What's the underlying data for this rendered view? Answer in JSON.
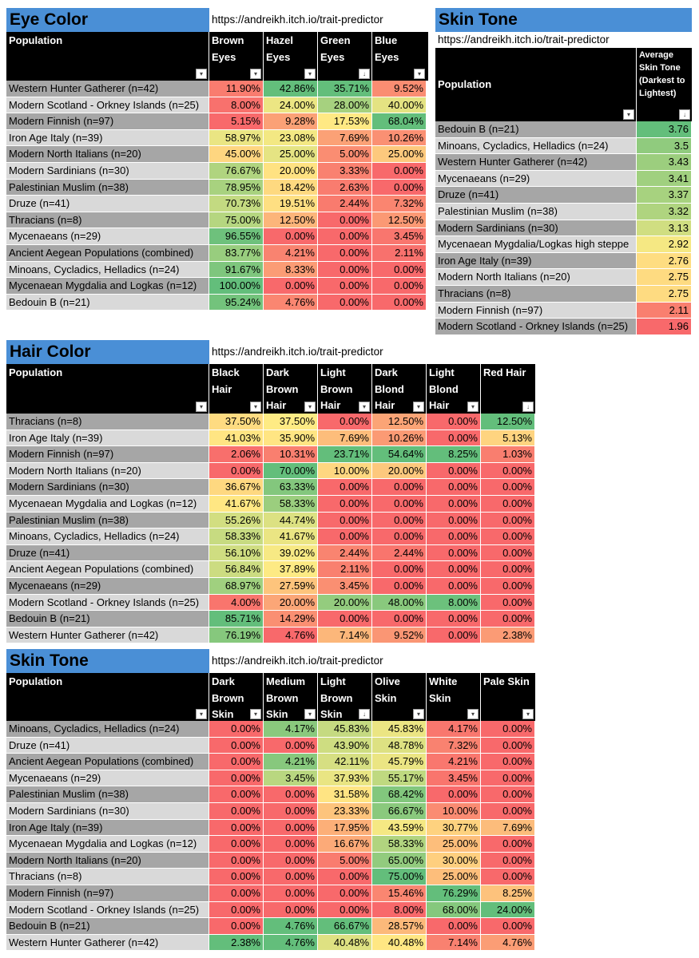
{
  "url": "https://andreikh.itch.io/trait-predictor",
  "colors": {
    "title_bg": "#4a8fd6",
    "scale_low": "#f8696b",
    "scale_mid": "#ffeb84",
    "scale_high": "#63be7b"
  },
  "eye_color": {
    "title": "Eye Color",
    "headers": [
      "Population",
      "Brown Eyes",
      "Hazel Eyes",
      "Green Eyes",
      "Blue Eyes"
    ],
    "rows": [
      {
        "pop": "Western Hunter Gatherer (n=42)",
        "vals": [
          "11.90%",
          "42.86%",
          "35.71%",
          "9.52%"
        ]
      },
      {
        "pop": "Modern Scotland - Orkney Islands (n=25)",
        "vals": [
          "8.00%",
          "24.00%",
          "28.00%",
          "40.00%"
        ]
      },
      {
        "pop": "Modern Finnish (n=97)",
        "vals": [
          "5.15%",
          "9.28%",
          "17.53%",
          "68.04%"
        ]
      },
      {
        "pop": "Iron Age Italy (n=39)",
        "vals": [
          "58.97%",
          "23.08%",
          "7.69%",
          "10.26%"
        ]
      },
      {
        "pop": "Modern North Italians (n=20)",
        "vals": [
          "45.00%",
          "25.00%",
          "5.00%",
          "25.00%"
        ]
      },
      {
        "pop": "Modern Sardinians (n=30)",
        "vals": [
          "76.67%",
          "20.00%",
          "3.33%",
          "0.00%"
        ]
      },
      {
        "pop": "Palestinian Muslim (n=38)",
        "vals": [
          "78.95%",
          "18.42%",
          "2.63%",
          "0.00%"
        ]
      },
      {
        "pop": "Druze (n=41)",
        "vals": [
          "70.73%",
          "19.51%",
          "2.44%",
          "7.32%"
        ]
      },
      {
        "pop": "Thracians (n=8)",
        "vals": [
          "75.00%",
          "12.50%",
          "0.00%",
          "12.50%"
        ]
      },
      {
        "pop": "Mycenaeans (n=29)",
        "vals": [
          "96.55%",
          "0.00%",
          "0.00%",
          "3.45%"
        ]
      },
      {
        "pop": "Ancient Aegean Populations (combined)",
        "vals": [
          "83.77%",
          "4.21%",
          "0.00%",
          "2.11%"
        ]
      },
      {
        "pop": "Minoans, Cycladics, Helladics (n=24)",
        "vals": [
          "91.67%",
          "8.33%",
          "0.00%",
          "0.00%"
        ]
      },
      {
        "pop": "Mycenaean Mygdalia and Logkas (n=12)",
        "vals": [
          "100.00%",
          "0.00%",
          "0.00%",
          "0.00%"
        ]
      },
      {
        "pop": "Bedouin B (n=21)",
        "vals": [
          "95.24%",
          "4.76%",
          "0.00%",
          "0.00%"
        ]
      }
    ]
  },
  "skin_avg": {
    "title": "Skin Tone",
    "headers": [
      "Population",
      "Average Skin Tone (Darkest to Lightest)"
    ],
    "rows": [
      {
        "pop": "Bedouin B (n=21)",
        "vals": [
          "3.76"
        ]
      },
      {
        "pop": "Minoans, Cycladics, Helladics (n=24)",
        "vals": [
          "3.5"
        ]
      },
      {
        "pop": "Western Hunter Gatherer (n=42)",
        "vals": [
          "3.43"
        ]
      },
      {
        "pop": "Mycenaeans (n=29)",
        "vals": [
          "3.41"
        ]
      },
      {
        "pop": "Druze (n=41)",
        "vals": [
          "3.37"
        ]
      },
      {
        "pop": "Palestinian Muslim (n=38)",
        "vals": [
          "3.32"
        ]
      },
      {
        "pop": "Modern Sardinians (n=30)",
        "vals": [
          "3.13"
        ]
      },
      {
        "pop": "Mycenaean Mygdalia/Logkas high steppe",
        "vals": [
          "2.92"
        ]
      },
      {
        "pop": "Iron Age Italy (n=39)",
        "vals": [
          "2.76"
        ]
      },
      {
        "pop": "Modern North Italians (n=20)",
        "vals": [
          "2.75"
        ]
      },
      {
        "pop": "Thracians (n=8)",
        "vals": [
          "2.75"
        ]
      },
      {
        "pop": "Modern Finnish (n=97)",
        "vals": [
          "2.11"
        ]
      },
      {
        "pop": "Modern Scotland - Orkney Islands (n=25)",
        "vals": [
          "1.96"
        ]
      }
    ]
  },
  "hair_color": {
    "title": "Hair Color",
    "headers": [
      "Population",
      "Black Hair",
      "Dark Brown Hair",
      "Light Brown Hair",
      "Dark Blond Hair",
      "Light Blond Hair",
      "Red Hair"
    ],
    "rows": [
      {
        "pop": "Thracians (n=8)",
        "vals": [
          "37.50%",
          "37.50%",
          "0.00%",
          "12.50%",
          "0.00%",
          "12.50%"
        ]
      },
      {
        "pop": "Iron Age Italy (n=39)",
        "vals": [
          "41.03%",
          "35.90%",
          "7.69%",
          "10.26%",
          "0.00%",
          "5.13%"
        ]
      },
      {
        "pop": "Modern Finnish (n=97)",
        "vals": [
          "2.06%",
          "10.31%",
          "23.71%",
          "54.64%",
          "8.25%",
          "1.03%"
        ]
      },
      {
        "pop": "Modern North Italians (n=20)",
        "vals": [
          "0.00%",
          "70.00%",
          "10.00%",
          "20.00%",
          "0.00%",
          "0.00%"
        ]
      },
      {
        "pop": "Modern Sardinians (n=30)",
        "vals": [
          "36.67%",
          "63.33%",
          "0.00%",
          "0.00%",
          "0.00%",
          "0.00%"
        ]
      },
      {
        "pop": "Mycenaean Mygdalia and Logkas (n=12)",
        "vals": [
          "41.67%",
          "58.33%",
          "0.00%",
          "0.00%",
          "0.00%",
          "0.00%"
        ]
      },
      {
        "pop": "Palestinian Muslim (n=38)",
        "vals": [
          "55.26%",
          "44.74%",
          "0.00%",
          "0.00%",
          "0.00%",
          "0.00%"
        ]
      },
      {
        "pop": "Minoans, Cycladics, Helladics (n=24)",
        "vals": [
          "58.33%",
          "41.67%",
          "0.00%",
          "0.00%",
          "0.00%",
          "0.00%"
        ]
      },
      {
        "pop": "Druze (n=41)",
        "vals": [
          "56.10%",
          "39.02%",
          "2.44%",
          "2.44%",
          "0.00%",
          "0.00%"
        ]
      },
      {
        "pop": "Ancient Aegean Populations (combined)",
        "vals": [
          "56.84%",
          "37.89%",
          "2.11%",
          "0.00%",
          "0.00%",
          "0.00%"
        ]
      },
      {
        "pop": "Mycenaeans (n=29)",
        "vals": [
          "68.97%",
          "27.59%",
          "3.45%",
          "0.00%",
          "0.00%",
          "0.00%"
        ]
      },
      {
        "pop": "Modern Scotland - Orkney Islands (n=25)",
        "vals": [
          "4.00%",
          "20.00%",
          "20.00%",
          "48.00%",
          "8.00%",
          "0.00%"
        ]
      },
      {
        "pop": "Bedouin B (n=21)",
        "vals": [
          "85.71%",
          "14.29%",
          "0.00%",
          "0.00%",
          "0.00%",
          "0.00%"
        ]
      },
      {
        "pop": "Western Hunter Gatherer (n=42)",
        "vals": [
          "76.19%",
          "4.76%",
          "7.14%",
          "9.52%",
          "0.00%",
          "2.38%"
        ]
      }
    ]
  },
  "skin_tone": {
    "title": "Skin Tone",
    "headers": [
      "Population",
      "Dark Brown Skin",
      "Medium Brown Skin",
      "Light Brown Skin",
      "Olive Skin",
      "White Skin",
      "Pale Skin"
    ],
    "rows": [
      {
        "pop": "Minoans, Cycladics, Helladics (n=24)",
        "vals": [
          "0.00%",
          "4.17%",
          "45.83%",
          "45.83%",
          "4.17%",
          "0.00%"
        ]
      },
      {
        "pop": "Druze (n=41)",
        "vals": [
          "0.00%",
          "0.00%",
          "43.90%",
          "48.78%",
          "7.32%",
          "0.00%"
        ]
      },
      {
        "pop": "Ancient Aegean Populations (combined)",
        "vals": [
          "0.00%",
          "4.21%",
          "42.11%",
          "45.79%",
          "4.21%",
          "0.00%"
        ]
      },
      {
        "pop": "Mycenaeans (n=29)",
        "vals": [
          "0.00%",
          "3.45%",
          "37.93%",
          "55.17%",
          "3.45%",
          "0.00%"
        ]
      },
      {
        "pop": "Palestinian Muslim (n=38)",
        "vals": [
          "0.00%",
          "0.00%",
          "31.58%",
          "68.42%",
          "0.00%",
          "0.00%"
        ]
      },
      {
        "pop": "Modern Sardinians (n=30)",
        "vals": [
          "0.00%",
          "0.00%",
          "23.33%",
          "66.67%",
          "10.00%",
          "0.00%"
        ]
      },
      {
        "pop": "Iron Age Italy (n=39)",
        "vals": [
          "0.00%",
          "0.00%",
          "17.95%",
          "43.59%",
          "30.77%",
          "7.69%"
        ]
      },
      {
        "pop": "Mycenaean Mygdalia and Logkas (n=12)",
        "vals": [
          "0.00%",
          "0.00%",
          "16.67%",
          "58.33%",
          "25.00%",
          "0.00%"
        ]
      },
      {
        "pop": "Modern North Italians (n=20)",
        "vals": [
          "0.00%",
          "0.00%",
          "5.00%",
          "65.00%",
          "30.00%",
          "0.00%"
        ]
      },
      {
        "pop": "Thracians (n=8)",
        "vals": [
          "0.00%",
          "0.00%",
          "0.00%",
          "75.00%",
          "25.00%",
          "0.00%"
        ]
      },
      {
        "pop": "Modern Finnish (n=97)",
        "vals": [
          "0.00%",
          "0.00%",
          "0.00%",
          "15.46%",
          "76.29%",
          "8.25%"
        ]
      },
      {
        "pop": "Modern Scotland - Orkney Islands (n=25)",
        "vals": [
          "0.00%",
          "0.00%",
          "0.00%",
          "8.00%",
          "68.00%",
          "24.00%"
        ]
      },
      {
        "pop": "Bedouin B (n=21)",
        "vals": [
          "0.00%",
          "4.76%",
          "66.67%",
          "28.57%",
          "0.00%",
          "0.00%"
        ]
      },
      {
        "pop": "Western Hunter Gatherer (n=42)",
        "vals": [
          "2.38%",
          "4.76%",
          "40.48%",
          "40.48%",
          "7.14%",
          "4.76%"
        ]
      }
    ]
  }
}
